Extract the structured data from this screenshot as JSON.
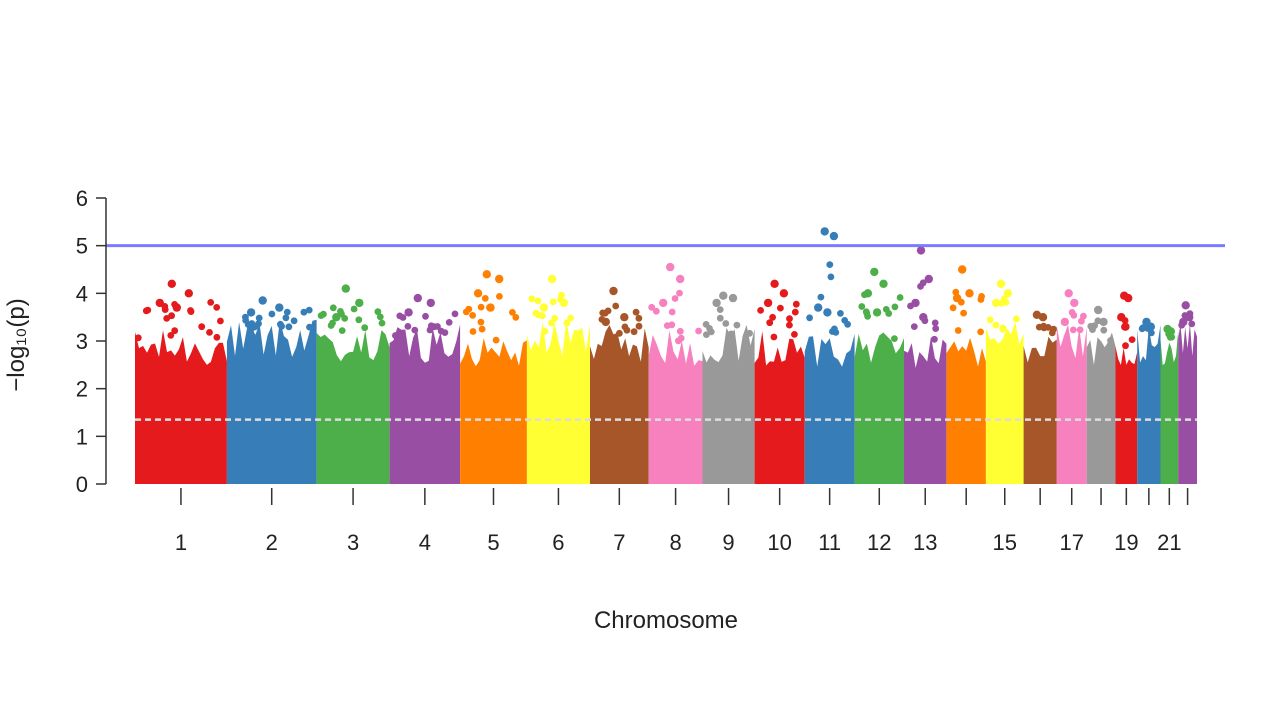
{
  "chart_data": {
    "type": "scatter",
    "subtype": "manhattan",
    "title": "",
    "xlabel": "Chromosome",
    "ylabel": "−log₁₀(p)",
    "ylim": [
      0,
      6
    ],
    "yticks": [
      0,
      1,
      2,
      3,
      4,
      5,
      6
    ],
    "grid": false,
    "legend": "none",
    "thresholds": [
      {
        "type": "genome-wide",
        "value": 5.0,
        "color": "#7b7bff",
        "style": "solid"
      },
      {
        "type": "suggestive",
        "value": 1.35,
        "color": "#dddddd",
        "style": "dashed"
      }
    ],
    "chromosomes": [
      {
        "chr": 1,
        "label": "1",
        "color": "#e41a1c",
        "max_log10p": 4.2,
        "typical_max_log10p": 3.0,
        "top_snps": [
          4.2,
          4.0,
          3.8,
          3.7
        ]
      },
      {
        "chr": 2,
        "label": "2",
        "color": "#377eb8",
        "max_log10p": 3.85,
        "typical_max_log10p": 3.2,
        "top_snps": [
          3.85,
          3.7,
          3.6
        ]
      },
      {
        "chr": 3,
        "label": "3",
        "color": "#4daf4a",
        "max_log10p": 4.1,
        "typical_max_log10p": 3.0,
        "top_snps": [
          4.1,
          3.8,
          3.5
        ]
      },
      {
        "chr": 4,
        "label": "4",
        "color": "#984ea3",
        "max_log10p": 3.9,
        "typical_max_log10p": 3.1,
        "top_snps": [
          3.9,
          3.8,
          3.6
        ]
      },
      {
        "chr": 5,
        "label": "5",
        "color": "#ff7f00",
        "max_log10p": 4.4,
        "typical_max_log10p": 3.0,
        "top_snps": [
          4.4,
          4.3,
          4.0,
          3.7
        ]
      },
      {
        "chr": 6,
        "label": "6",
        "color": "#ffff33",
        "max_log10p": 4.3,
        "typical_max_log10p": 3.2,
        "top_snps": [
          4.3,
          3.8,
          3.7
        ]
      },
      {
        "chr": 7,
        "label": "7",
        "color": "#a65628",
        "max_log10p": 4.05,
        "typical_max_log10p": 3.1,
        "top_snps": [
          4.05,
          3.5,
          3.4
        ]
      },
      {
        "chr": 8,
        "label": "8",
        "color": "#f781bf",
        "max_log10p": 4.55,
        "typical_max_log10p": 3.0,
        "top_snps": [
          4.55,
          4.3,
          3.8
        ]
      },
      {
        "chr": 9,
        "label": "9",
        "color": "#999999",
        "max_log10p": 3.95,
        "typical_max_log10p": 3.1,
        "top_snps": [
          3.95,
          3.9,
          3.8
        ]
      },
      {
        "chr": 10,
        "label": "10",
        "color": "#e41a1c",
        "max_log10p": 4.2,
        "typical_max_log10p": 3.0,
        "top_snps": [
          4.2,
          4.0,
          3.8
        ]
      },
      {
        "chr": 11,
        "label": "11",
        "color": "#377eb8",
        "max_log10p": 5.3,
        "typical_max_log10p": 3.0,
        "top_snps": [
          5.3,
          5.2,
          3.7,
          3.6
        ]
      },
      {
        "chr": 12,
        "label": "12",
        "color": "#4daf4a",
        "max_log10p": 4.45,
        "typical_max_log10p": 3.0,
        "top_snps": [
          4.45,
          4.2,
          4.0,
          3.6
        ]
      },
      {
        "chr": 13,
        "label": "13",
        "color": "#984ea3",
        "max_log10p": 4.9,
        "typical_max_log10p": 2.9,
        "top_snps": [
          4.9,
          4.3,
          3.8,
          3.5
        ]
      },
      {
        "chr": 14,
        "label": "",
        "color": "#ff7f00",
        "max_log10p": 4.5,
        "typical_max_log10p": 3.0,
        "top_snps": [
          4.5,
          4.0,
          3.9
        ]
      },
      {
        "chr": 15,
        "label": "15",
        "color": "#ffff33",
        "max_log10p": 4.2,
        "typical_max_log10p": 3.2,
        "top_snps": [
          4.2,
          4.0,
          3.8
        ]
      },
      {
        "chr": 16,
        "label": "",
        "color": "#a65628",
        "max_log10p": 3.55,
        "typical_max_log10p": 3.0,
        "top_snps": [
          3.55,
          3.5
        ]
      },
      {
        "chr": 17,
        "label": "17",
        "color": "#f781bf",
        "max_log10p": 4.0,
        "typical_max_log10p": 3.1,
        "top_snps": [
          4.0,
          3.8,
          3.4
        ]
      },
      {
        "chr": 18,
        "label": "",
        "color": "#999999",
        "max_log10p": 3.65,
        "typical_max_log10p": 3.0,
        "top_snps": [
          3.65,
          3.4
        ]
      },
      {
        "chr": 19,
        "label": "19",
        "color": "#e41a1c",
        "max_log10p": 3.95,
        "typical_max_log10p": 2.7,
        "top_snps": [
          3.95,
          3.9,
          3.5,
          3.3
        ]
      },
      {
        "chr": 20,
        "label": "",
        "color": "#377eb8",
        "max_log10p": 3.4,
        "typical_max_log10p": 3.1,
        "top_snps": [
          3.4,
          3.3
        ]
      },
      {
        "chr": 21,
        "label": "21",
        "color": "#4daf4a",
        "max_log10p": 3.25,
        "typical_max_log10p": 3.0,
        "top_snps": [
          3.25,
          3.2
        ]
      },
      {
        "chr": 22,
        "label": "",
        "color": "#984ea3",
        "max_log10p": 3.75,
        "typical_max_log10p": 3.2,
        "top_snps": [
          3.75,
          3.5,
          3.4
        ]
      }
    ]
  }
}
